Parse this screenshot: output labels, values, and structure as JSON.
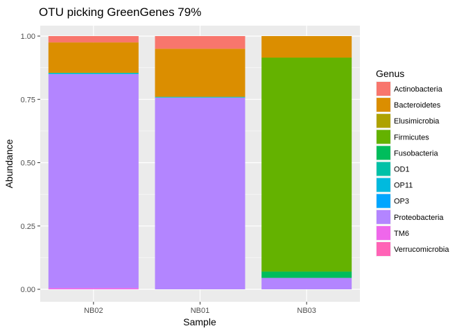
{
  "chart_data": {
    "type": "bar",
    "stacked": true,
    "title": "OTU picking GreenGenes 79%",
    "xlabel": "Sample",
    "ylabel": "Abundance",
    "categories": [
      "NB02",
      "NB01",
      "NB03"
    ],
    "ylim": [
      0,
      1
    ],
    "yticks": [
      "0.00",
      "0.25",
      "0.50",
      "0.75",
      "1.00"
    ],
    "grid": true,
    "legend_position": "right",
    "legend_title": "Genus",
    "series": [
      {
        "name": "Actinobacteria",
        "color": "#F8766D",
        "values": [
          0.025,
          0.05,
          0.0
        ]
      },
      {
        "name": "Bacteroidetes",
        "color": "#DB8E00",
        "values": [
          0.12,
          0.19,
          0.085
        ]
      },
      {
        "name": "Elusimicrobia",
        "color": "#AEA200",
        "values": [
          0.0,
          0.0,
          0.0
        ]
      },
      {
        "name": "Firmicutes",
        "color": "#64B200",
        "values": [
          0.0,
          0.0,
          0.845
        ]
      },
      {
        "name": "Fusobacteria",
        "color": "#00BD5C",
        "values": [
          0.0,
          0.0,
          0.025
        ]
      },
      {
        "name": "OD1",
        "color": "#00C1A7",
        "values": [
          0.003,
          0.002,
          0.0
        ]
      },
      {
        "name": "OP11",
        "color": "#00BADE",
        "values": [
          0.002,
          0.001,
          0.0
        ]
      },
      {
        "name": "OP3",
        "color": "#00A6FF",
        "values": [
          0.0,
          0.0,
          0.0
        ]
      },
      {
        "name": "Proteobacteria",
        "color": "#B385FF",
        "values": [
          0.845,
          0.757,
          0.045
        ]
      },
      {
        "name": "TM6",
        "color": "#EF67EB",
        "values": [
          0.005,
          0.0,
          0.0
        ]
      },
      {
        "name": "Verrucomicrobia",
        "color": "#FF63B6",
        "values": [
          0.0,
          0.0,
          0.0
        ]
      }
    ]
  }
}
